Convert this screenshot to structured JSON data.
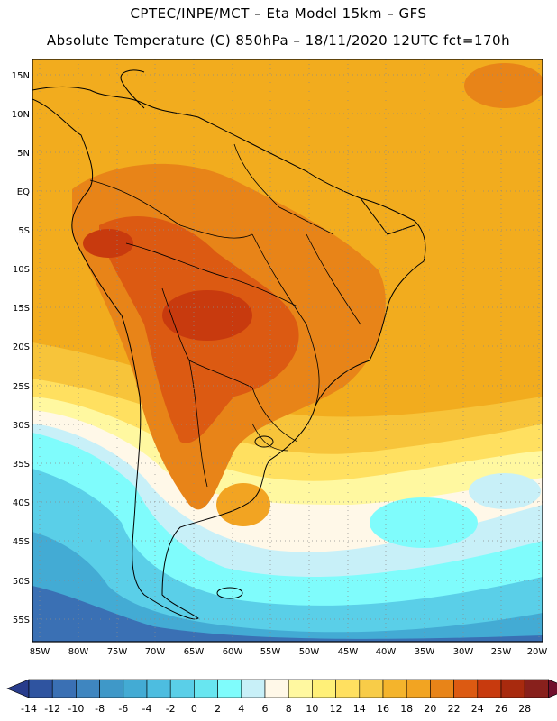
{
  "header": {
    "line1": "CPTEC/INPE/MCT –  Eta Model 15km – GFS",
    "line2": "Absolute Temperature (C) 850hPa – 18/11/2020 12UTC fct=170h"
  },
  "map": {
    "lat_labels": [
      "15N",
      "10N",
      "5N",
      "EQ",
      "5S",
      "10S",
      "15S",
      "20S",
      "25S",
      "30S",
      "35S",
      "40S",
      "45S",
      "50S",
      "55S"
    ],
    "lon_labels": [
      "85W",
      "80W",
      "75W",
      "70W",
      "65W",
      "60W",
      "55W",
      "50W",
      "45W",
      "40W",
      "35W",
      "30W",
      "25W",
      "20W"
    ]
  },
  "colorbar": {
    "values": [
      "-14",
      "-12",
      "-10",
      "-8",
      "-6",
      "-4",
      "-2",
      "0",
      "2",
      "4",
      "6",
      "8",
      "10",
      "12",
      "14",
      "16",
      "18",
      "20",
      "22",
      "24",
      "26",
      "28"
    ],
    "colors": [
      "#283c8c",
      "#2f54a0",
      "#3a70b4",
      "#3f86c0",
      "#3f98c8",
      "#43abd4",
      "#4dbde0",
      "#5acfe8",
      "#68e6f0",
      "#7ffcfc",
      "#c8f0f8",
      "#fff8e8",
      "#fff8a0",
      "#fff078",
      "#ffe060",
      "#f8cc48",
      "#f4b42c",
      "#f2a422",
      "#e88418",
      "#dc5a12",
      "#c83a0e",
      "#a82a0e",
      "#88201c",
      "#700e2c"
    ]
  }
}
